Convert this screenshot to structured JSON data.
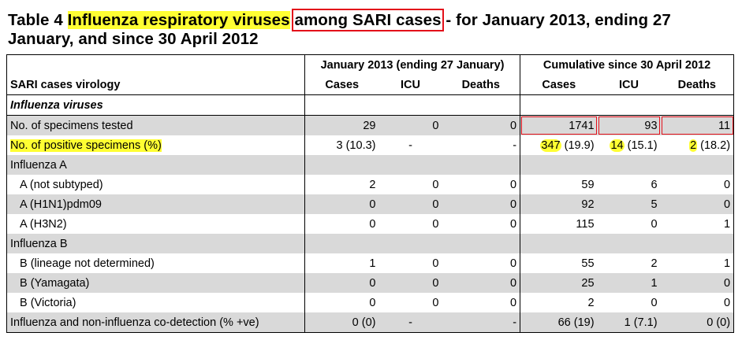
{
  "title": {
    "prefix": "Table 4 ",
    "highlight": "Influenza respiratory viruses",
    "space": " ",
    "boxed": "among SARI cases",
    "suffix": " - for January 2013, ending 27 January, and since 30 April 2012"
  },
  "header": {
    "group_jan": "January 2013 (ending 27 January)",
    "group_cum": "Cumulative since 30 April 2012",
    "row_label": "SARI cases virology",
    "cases": "Cases",
    "icu": "ICU",
    "deaths": "Deaths"
  },
  "section_influenza": "Influenza viruses",
  "rows": [
    {
      "label": "No. of specimens tested",
      "jan_cases": "29",
      "jan_icu": "0",
      "jan_deaths": "0",
      "cum_cases": "1741",
      "cum_icu": "93",
      "cum_deaths": "11"
    },
    {
      "label": "No. of positive specimens (%)",
      "jan_cases": "3 (10.3)",
      "jan_icu": "-",
      "jan_deaths": "-",
      "cum_cases_n": "347",
      "cum_cases_p": " (19.9)",
      "cum_icu_n": "14",
      "cum_icu_p": " (15.1)",
      "cum_deaths_n": "2",
      "cum_deaths_p": " (18.2)"
    },
    {
      "label": "Influenza A"
    },
    {
      "label": "A (not subtyped)",
      "jan_cases": "2",
      "jan_icu": "0",
      "jan_deaths": "0",
      "cum_cases": "59",
      "cum_icu": "6",
      "cum_deaths": "0"
    },
    {
      "label": "A (H1N1)pdm09",
      "jan_cases": "0",
      "jan_icu": "0",
      "jan_deaths": "0",
      "cum_cases": "92",
      "cum_icu": "5",
      "cum_deaths": "0"
    },
    {
      "label": "A (H3N2)",
      "jan_cases": "0",
      "jan_icu": "0",
      "jan_deaths": "0",
      "cum_cases": "115",
      "cum_icu": "0",
      "cum_deaths": "1"
    },
    {
      "label": "Influenza B"
    },
    {
      "label": "B (lineage not determined)",
      "jan_cases": "1",
      "jan_icu": "0",
      "jan_deaths": "0",
      "cum_cases": "55",
      "cum_icu": "2",
      "cum_deaths": "1"
    },
    {
      "label": "B (Yamagata)",
      "jan_cases": "0",
      "jan_icu": "0",
      "jan_deaths": "0",
      "cum_cases": "25",
      "cum_icu": "1",
      "cum_deaths": "0"
    },
    {
      "label": "B (Victoria)",
      "jan_cases": "0",
      "jan_icu": "0",
      "jan_deaths": "0",
      "cum_cases": "2",
      "cum_icu": "0",
      "cum_deaths": "0"
    },
    {
      "label": "Influenza and non-influenza co-detection (% +ve)",
      "jan_cases": "0 (0)",
      "jan_icu": "-",
      "jan_deaths": "-",
      "cum_cases": "66 (19)",
      "cum_icu": "1 (7.1)",
      "cum_deaths": "0 (0)"
    }
  ],
  "colors": {
    "highlight": "#ffff33",
    "box": "#e3101a",
    "shade": "#d9d9d9"
  }
}
